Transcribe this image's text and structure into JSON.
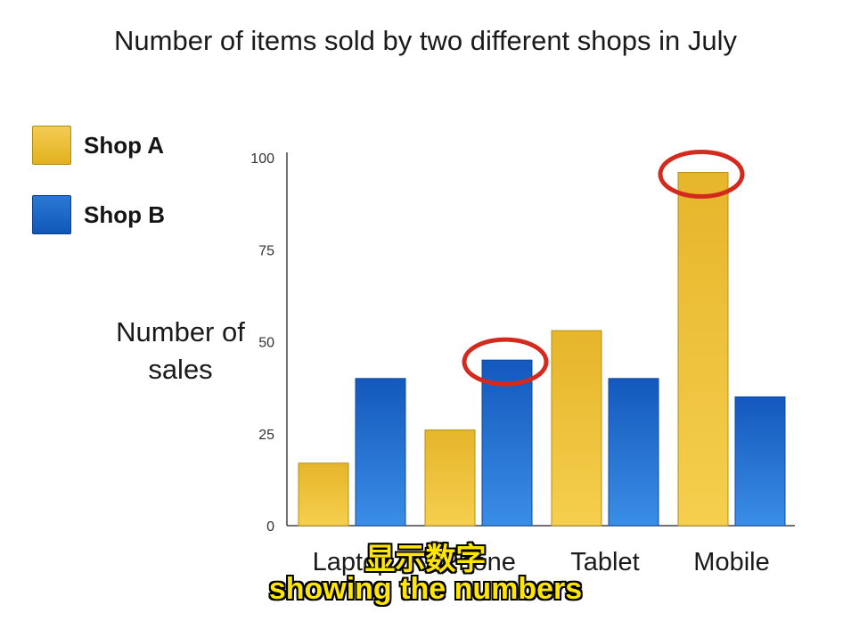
{
  "subtitles": {
    "chinese": "显示数字",
    "english": "showing the numbers"
  },
  "colors": {
    "shop_a": "#e8b92a",
    "shop_b": "#1f6ccc",
    "highlight": "#d42a1e"
  },
  "chart_data": {
    "type": "bar",
    "title": "Number of items sold by two different shops in July",
    "xlabel": "",
    "ylabel": "Number of sales",
    "categories": [
      "Laptop",
      "Phone",
      "Tablet",
      "Mobile"
    ],
    "series": [
      {
        "name": "Shop A",
        "values": [
          17,
          26,
          53,
          96
        ]
      },
      {
        "name": "Shop B",
        "values": [
          40,
          45,
          40,
          35
        ]
      }
    ],
    "ylim": [
      0,
      100
    ],
    "yticks": [
      "0",
      "25",
      "50",
      "75",
      "100"
    ],
    "grid": false,
    "legend": "left",
    "highlighted": [
      {
        "series": "Shop B",
        "category": "Phone"
      },
      {
        "series": "Shop A",
        "category": "Mobile"
      }
    ]
  }
}
